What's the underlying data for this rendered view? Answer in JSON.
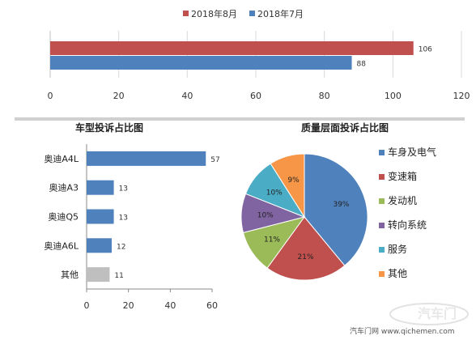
{
  "chart_data": [
    {
      "type": "bar",
      "orientation": "horizontal",
      "title": "",
      "legend_position": "top",
      "series": [
        {
          "name": "2018年8月",
          "values": [
            106
          ],
          "color": "#c0504d"
        },
        {
          "name": "2018年7月",
          "values": [
            88
          ],
          "color": "#4f81bd"
        }
      ],
      "xlim": [
        0,
        120
      ],
      "x_ticks": [
        "0",
        "20",
        "40",
        "60",
        "80",
        "100",
        "120"
      ],
      "grid": "vertical gridlines"
    },
    {
      "type": "bar",
      "orientation": "horizontal",
      "title": "车型投诉占比图",
      "categories": [
        "奥迪A4L",
        "奥迪A3",
        "奥迪Q5",
        "奥迪A6L",
        "其他"
      ],
      "values": [
        57,
        13,
        13,
        12,
        11
      ],
      "colors": [
        "#4f81bd",
        "#4f81bd",
        "#4f81bd",
        "#4f81bd",
        "#bfbfbf"
      ],
      "xlim": [
        0,
        60
      ],
      "x_ticks": [
        "0",
        "20",
        "40",
        "60"
      ]
    },
    {
      "type": "pie",
      "title": "质量层面投诉占比图",
      "legend_position": "right",
      "slices": [
        {
          "label": "车身及电气",
          "value": 39,
          "text": "39%",
          "color": "#4f81bd"
        },
        {
          "label": "变速箱",
          "value": 21,
          "text": "21%",
          "color": "#c0504d"
        },
        {
          "label": "发动机",
          "value": 11,
          "text": "11%",
          "color": "#9bbb59"
        },
        {
          "label": "转向系统",
          "value": 10,
          "text": "10%",
          "color": "#8064a2"
        },
        {
          "label": "服务",
          "value": 10,
          "text": "10%",
          "color": "#4bacc6"
        },
        {
          "label": "其他",
          "value": 9,
          "text": "9%",
          "color": "#f79646"
        }
      ]
    }
  ],
  "watermark": {
    "text": "汽车门网 www.qichemen.com",
    "logo_text": "汽车门"
  }
}
